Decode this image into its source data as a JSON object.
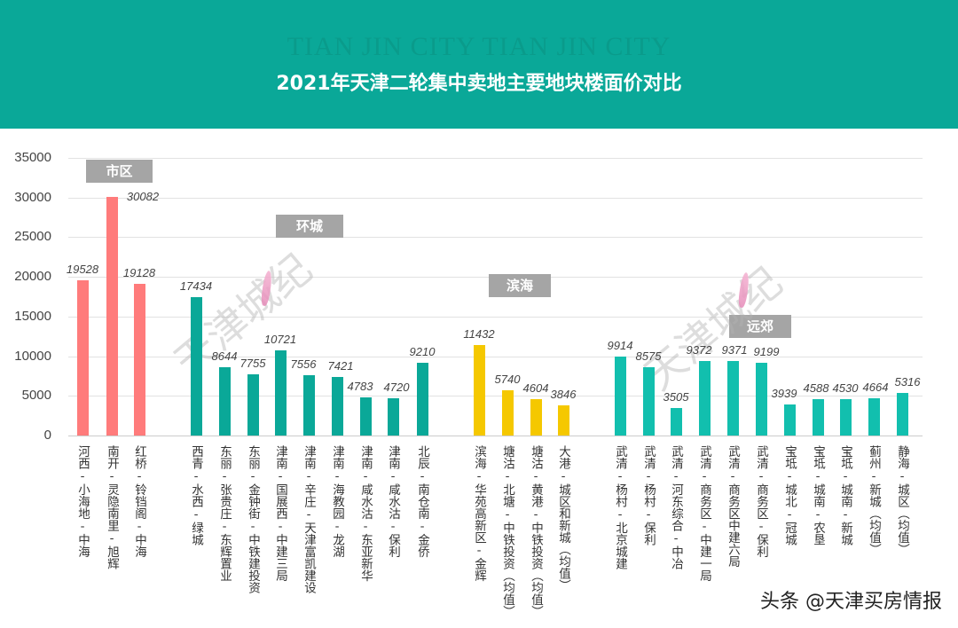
{
  "header": {
    "watermark": "TIAN JIN CITY TIAN JIN CITY",
    "title": "2021年天津二轮集中卖地主要地块楼面价对比"
  },
  "colors": {
    "header_bg": "#0aa898",
    "shiqu": "#ff7b7b",
    "huancheng": "#0aa898",
    "binhai": "#f5c800",
    "yuanjiao": "#12bfae",
    "group_label_bg": "#a5a5a5"
  },
  "chart_data": {
    "type": "bar",
    "title": "2021年天津二轮集中卖地主要地块楼面价对比",
    "xlabel": "",
    "ylabel": "",
    "ylim": [
      0,
      35000
    ],
    "yticks": [
      0,
      5000,
      10000,
      15000,
      20000,
      25000,
      30000,
      35000
    ],
    "grid": true,
    "groups": [
      {
        "name": "市区",
        "color": "#ff7b7b",
        "categories": [
          "河西-小海地-中海",
          "南开-灵隐南里-旭辉",
          "红桥-铃铛阁-中海"
        ],
        "values": [
          19528,
          30082,
          19128
        ]
      },
      {
        "name": "环城",
        "color": "#0aa898",
        "categories": [
          "西青-水西-绿城",
          "东丽-张贵庄-东辉置业",
          "东丽-金钟街-中铁建投资",
          "津南-国展西-中建三局",
          "津南-辛庄-天津富凯建设",
          "津南-海教园-龙湖",
          "津南-咸水沽-东亚新华",
          "津南-咸水沽-保利",
          "北辰-南仓南-金侨"
        ],
        "values": [
          17434,
          8644,
          7755,
          10721,
          7556,
          7421,
          4783,
          4720,
          9210
        ]
      },
      {
        "name": "滨海",
        "color": "#f5c800",
        "categories": [
          "滨海-华苑高新区-金辉",
          "塘沽-北塘-中铁投资（均值）",
          "塘沽-黄港-中铁投资（均值）",
          "大港-城区和新城（均值）"
        ],
        "values": [
          11432,
          5740,
          4604,
          3846
        ]
      },
      {
        "name": "远郊",
        "color": "#12bfae",
        "categories": [
          "武清-杨村-北京城建",
          "武清-杨村-保利",
          "武清-河东综合-中冶",
          "武清-商务区-中建一局",
          "武清-商务区中建六局",
          "武清-商务区-保利",
          "宝坻-城北-冠城",
          "宝坻-城南-农垦",
          "宝坻-城南-新城",
          "蓟州-新城（均值）",
          "静海-城区（均值）"
        ],
        "values": [
          9914,
          8575,
          3505,
          9372,
          9371,
          9199,
          3939,
          4588,
          4530,
          4664,
          5316
        ]
      }
    ]
  },
  "yaxis": {
    "ticks": [
      "35000",
      "30000",
      "25000",
      "20000",
      "15000",
      "10000",
      "5000",
      "0"
    ]
  },
  "group_labels": [
    "市区",
    "环城",
    "滨海",
    "远郊"
  ],
  "bars": [
    {
      "label": "河西-小海地-中海",
      "value": "19528"
    },
    {
      "label": "南开-灵隐南里-旭辉",
      "value": "30082"
    },
    {
      "label": "红桥-铃铛阁-中海",
      "value": "19128"
    },
    {
      "label": "西青-水西-绿城",
      "value": "17434"
    },
    {
      "label": "东丽-张贵庄-东辉置业",
      "value": "8644"
    },
    {
      "label": "东丽-金钟街-中铁建投资",
      "value": "7755"
    },
    {
      "label": "津南-国展西-中建三局",
      "value": "10721"
    },
    {
      "label": "津南-辛庄-天津富凯建设",
      "value": "7556"
    },
    {
      "label": "津南-海教园-龙湖",
      "value": "7421"
    },
    {
      "label": "津南-咸水沽-东亚新华",
      "value": "4783"
    },
    {
      "label": "津南-咸水沽-保利",
      "value": "4720"
    },
    {
      "label": "北辰-南仓南-金侨",
      "value": "9210"
    },
    {
      "label": "滨海-华苑高新区-金辉",
      "value": "11432"
    },
    {
      "label": "塘沽-北塘-中铁投资（均值）",
      "value": "5740"
    },
    {
      "label": "塘沽-黄港-中铁投资（均值）",
      "value": "4604"
    },
    {
      "label": "大港-城区和新城（均值）",
      "value": "3846"
    },
    {
      "label": "武清-杨村-北京城建",
      "value": "9914"
    },
    {
      "label": "武清-杨村-保利",
      "value": "8575"
    },
    {
      "label": "武清-河东综合-中冶",
      "value": "3505"
    },
    {
      "label": "武清-商务区-中建一局",
      "value": "9372"
    },
    {
      "label": "武清-商务区中建六局",
      "value": "9371"
    },
    {
      "label": "武清-商务区-保利",
      "value": "9199"
    },
    {
      "label": "宝坻-城北-冠城",
      "value": "3939"
    },
    {
      "label": "宝坻-城南-农垦",
      "value": "4588"
    },
    {
      "label": "宝坻-城南-新城",
      "value": "4530"
    },
    {
      "label": "蓟州-新城（均值）",
      "value": "4664"
    },
    {
      "label": "静海-城区（均值）",
      "value": "5316"
    }
  ],
  "watermark_cn": "天津城纪",
  "credit": "头条 @天津买房情报"
}
